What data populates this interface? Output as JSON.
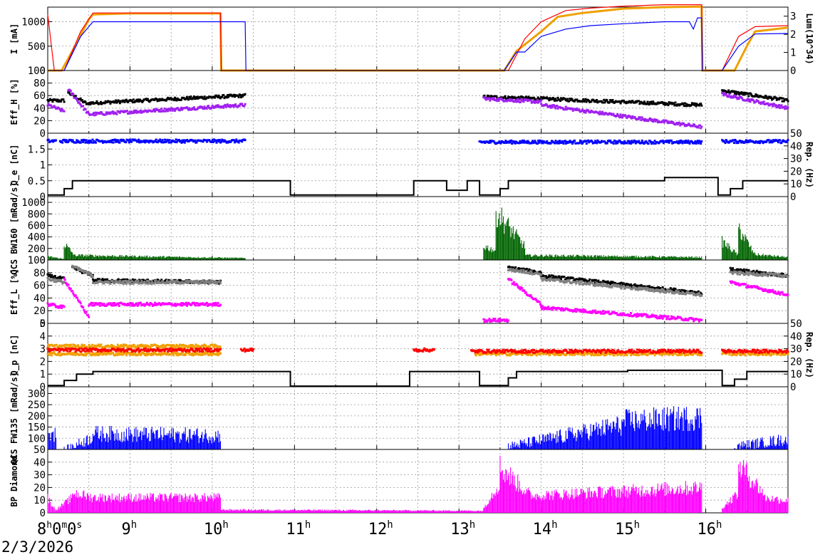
{
  "window": {
    "date_label": "2/3/2026"
  },
  "colors": {
    "black": "#000000",
    "red": "#ff0000",
    "orange": "#f0a000",
    "blue": "#0000ff",
    "purple": "#a020f0",
    "magenta": "#ff00ff",
    "gray": "#808080",
    "green": "#006400",
    "grid": "#888888"
  },
  "chart_data": [
    {
      "type": "line",
      "ylabel": "I [mA]",
      "ylabel_right": "Lum(10^34)",
      "ylim": [
        0,
        1300
      ],
      "yticks": [
        "0",
        "500",
        "1000"
      ],
      "ylim_right": [
        0,
        3.5
      ],
      "yticks_right": [
        "0",
        "1",
        "2",
        "3"
      ],
      "series": [
        {
          "color": "#f0a000",
          "x": [
            8.0,
            8.08,
            8.17,
            8.3,
            8.5,
            8.55,
            9.0,
            10.1,
            10.11,
            13.4,
            13.55,
            13.7,
            14.0,
            14.2,
            14.5,
            15.0,
            15.5,
            15.95,
            15.96,
            16.15,
            16.35,
            16.5,
            16.6,
            17.0
          ],
          "y": [
            0,
            0,
            0,
            400,
            1050,
            1150,
            1170,
            1170,
            0,
            0,
            0,
            400,
            800,
            1100,
            1180,
            1270,
            1300,
            1310,
            0,
            0,
            0,
            500,
            800,
            880
          ]
        },
        {
          "color": "#ff0000",
          "x": [
            8.0,
            8.08,
            8.2,
            8.4,
            8.55,
            9.0,
            10.1,
            10.11,
            13.4,
            13.6,
            13.8,
            14.0,
            14.3,
            14.6,
            15.0,
            15.5,
            15.95,
            15.96,
            16.2,
            16.4,
            16.6,
            17.0
          ],
          "y": [
            1150,
            0,
            0,
            800,
            1180,
            1180,
            1180,
            0,
            0,
            0,
            650,
            1000,
            1230,
            1280,
            1320,
            1350,
            1350,
            0,
            0,
            700,
            900,
            920
          ]
        },
        {
          "color": "#0000ff",
          "x": [
            8.0,
            8.08,
            8.2,
            8.4,
            8.55,
            9.0,
            10.1,
            10.4,
            10.41,
            13.4,
            13.55,
            13.7,
            13.8,
            14.0,
            14.3,
            14.6,
            15.0,
            15.5,
            15.8,
            15.85,
            15.9,
            15.95,
            15.96,
            16.2,
            16.4,
            16.6,
            17.0
          ],
          "y": [
            0,
            0,
            0,
            700,
            1000,
            1000,
            1000,
            1000,
            0,
            0,
            0,
            380,
            380,
            700,
            850,
            920,
            960,
            1000,
            1000,
            850,
            1080,
            1080,
            0,
            0,
            500,
            750,
            760
          ]
        }
      ]
    },
    {
      "type": "scatter",
      "ylabel": "Eff_H [%]",
      "ylim": [
        0,
        100
      ],
      "yticks": [
        "0",
        "20",
        "40",
        "60",
        "80",
        "100"
      ],
      "series": [
        {
          "color": "#000000",
          "segments": [
            [
              8.0,
              8.2,
              52,
              52
            ],
            [
              8.25,
              8.5,
              65,
              45
            ],
            [
              8.5,
              10.4,
              48,
              60
            ],
            [
              13.3,
              14.0,
              58,
              55
            ],
            [
              14.0,
              15.95,
              55,
              45
            ],
            [
              16.2,
              17.0,
              68,
              52
            ]
          ]
        },
        {
          "color": "#a020f0",
          "segments": [
            [
              8.0,
              8.2,
              45,
              35
            ],
            [
              8.25,
              8.5,
              70,
              30
            ],
            [
              8.5,
              10.4,
              30,
              45
            ],
            [
              13.3,
              14.0,
              55,
              50
            ],
            [
              14.0,
              15.95,
              45,
              10
            ],
            [
              16.2,
              17.0,
              62,
              40
            ]
          ]
        }
      ]
    },
    {
      "type": "scatter",
      "ylabel": "Q_e [nC]",
      "ylabel_right": "Rep. (Hz)",
      "ylim": [
        0,
        2
      ],
      "yticks": [
        "0",
        "0.5",
        "1",
        "1.5"
      ],
      "ylim_right": [
        0,
        50
      ],
      "yticks_right": [
        "0",
        "10",
        "20",
        "30",
        "40",
        "50"
      ],
      "series": [
        {
          "color": "#0000ff",
          "segments": [
            [
              8.0,
              8.1,
              1.75,
              1.75
            ],
            [
              8.15,
              10.4,
              1.75,
              1.75
            ],
            [
              13.25,
              15.95,
              1.72,
              1.72
            ],
            [
              16.2,
              17.0,
              1.74,
              1.74
            ]
          ]
        },
        {
          "color": "#000000",
          "type": "step",
          "x": [
            8.0,
            8.2,
            8.3,
            10.95,
            12.45,
            12.85,
            13.1,
            13.25,
            13.5,
            13.6,
            15.5,
            16.15,
            16.3,
            16.45,
            17.0
          ],
          "y": [
            0.05,
            0.25,
            0.5,
            0.05,
            0.5,
            0.2,
            0.5,
            0.05,
            0.25,
            0.5,
            0.6,
            0.05,
            0.25,
            0.5,
            0.5
          ]
        }
      ]
    },
    {
      "type": "area",
      "ylabel": "QCS BW160 [mRad/s]",
      "ylim": [
        0,
        1100
      ],
      "yticks": [
        "0",
        "200",
        "400",
        "600",
        "800",
        "1000"
      ],
      "series": [
        {
          "color": "#006400",
          "segments": [
            [
              8.0,
              8.2,
              80,
              20
            ],
            [
              8.2,
              8.35,
              350,
              60
            ],
            [
              8.35,
              10.4,
              100,
              40
            ],
            [
              13.3,
              13.45,
              300,
              200
            ],
            [
              13.45,
              13.8,
              1040,
              300
            ],
            [
              13.8,
              15.95,
              100,
              60
            ],
            [
              16.2,
              16.4,
              400,
              100
            ],
            [
              16.4,
              16.6,
              700,
              100
            ],
            [
              16.6,
              17.0,
              120,
              60
            ]
          ]
        }
      ]
    },
    {
      "type": "scatter",
      "ylabel": "Eff_L [%]",
      "ylim": [
        0,
        100
      ],
      "yticks": [
        "0",
        "20",
        "40",
        "60",
        "80",
        "100"
      ],
      "series": [
        {
          "color": "#000000",
          "segments": [
            [
              8.0,
              8.2,
              75,
              70
            ],
            [
              8.3,
              8.55,
              88,
              75
            ],
            [
              8.55,
              10.1,
              68,
              65
            ],
            [
              13.6,
              14.0,
              88,
              80
            ],
            [
              14.0,
              15.95,
              75,
              48
            ],
            [
              16.3,
              17.0,
              85,
              75
            ]
          ]
        },
        {
          "color": "#808080",
          "segments": [
            [
              8.0,
              8.2,
              70,
              65
            ],
            [
              8.3,
              8.55,
              90,
              75
            ],
            [
              8.55,
              10.1,
              65,
              65
            ],
            [
              13.6,
              14.0,
              85,
              78
            ],
            [
              14.0,
              15.95,
              70,
              45
            ],
            [
              16.3,
              17.0,
              80,
              75
            ]
          ]
        },
        {
          "color": "#ff00ff",
          "segments": [
            [
              8.0,
              8.2,
              30,
              25
            ],
            [
              8.2,
              8.5,
              70,
              10
            ],
            [
              8.5,
              10.1,
              30,
              30
            ],
            [
              13.3,
              13.6,
              5,
              5
            ],
            [
              13.6,
              14.0,
              70,
              30
            ],
            [
              14.0,
              15.95,
              25,
              5
            ],
            [
              16.3,
              17.0,
              65,
              45
            ]
          ]
        }
      ]
    },
    {
      "type": "scatter",
      "ylabel": "Q_p [nC]",
      "ylabel_right": "Rep. (Hz)",
      "ylim": [
        0,
        5
      ],
      "yticks": [
        "0",
        "1",
        "2",
        "3",
        "4",
        "5"
      ],
      "ylim_right": [
        0,
        50
      ],
      "yticks_right": [
        "0",
        "10",
        "20",
        "30",
        "40",
        "50"
      ],
      "series": [
        {
          "color": "#f0a000",
          "segments": [
            [
              8.0,
              10.1,
              3.2,
              3.2
            ],
            [
              8.0,
              10.1,
              2.6,
              2.6
            ],
            [
              13.2,
              15.95,
              2.6,
              2.6
            ],
            [
              16.2,
              17.0,
              2.6,
              2.6
            ]
          ]
        },
        {
          "color": "#ff0000",
          "segments": [
            [
              8.0,
              10.1,
              2.9,
              2.9
            ],
            [
              10.35,
              10.5,
              2.9,
              2.9
            ],
            [
              12.45,
              12.7,
              2.9,
              2.9
            ],
            [
              13.15,
              15.95,
              2.8,
              2.8
            ],
            [
              16.2,
              17.0,
              2.8,
              2.8
            ]
          ]
        },
        {
          "color": "#000000",
          "type": "step",
          "x": [
            8.0,
            8.2,
            8.35,
            8.55,
            10.95,
            12.4,
            13.25,
            13.6,
            13.7,
            15.05,
            16.2,
            16.35,
            16.5,
            17.0
          ],
          "y": [
            0.1,
            0.5,
            1.0,
            1.2,
            0.05,
            1.2,
            0.1,
            0.7,
            1.2,
            1.3,
            0.1,
            0.6,
            1.2,
            1.2
          ]
        }
      ]
    },
    {
      "type": "area",
      "ylabel": "QCS FW135 [mRad/s]",
      "ylim": [
        50,
        330
      ],
      "yticks": [
        "50",
        "100",
        "150",
        "200",
        "250",
        "300"
      ],
      "series": [
        {
          "color": "#0000ff",
          "segments": [
            [
              8.0,
              8.1,
              160,
              150
            ],
            [
              8.2,
              8.55,
              60,
              130
            ],
            [
              8.55,
              10.1,
              150,
              140
            ],
            [
              13.6,
              15.0,
              80,
              200
            ],
            [
              15.0,
              15.95,
              220,
              240
            ],
            [
              16.35,
              17.0,
              80,
              120
            ]
          ]
        }
      ]
    },
    {
      "type": "area",
      "ylabel": "BP Diamond",
      "ylim": [
        0,
        50
      ],
      "yticks": [
        "0",
        "10",
        "20",
        "30",
        "40"
      ],
      "series": [
        {
          "color": "#ff00ff",
          "segments": [
            [
              8.0,
              8.1,
              15,
              2
            ],
            [
              8.1,
              8.3,
              3,
              15
            ],
            [
              8.3,
              8.55,
              20,
              15
            ],
            [
              8.55,
              10.1,
              15,
              15
            ],
            [
              10.1,
              13.3,
              3,
              2
            ],
            [
              13.3,
              13.5,
              5,
              30
            ],
            [
              13.5,
              13.9,
              45,
              15
            ],
            [
              13.9,
              15.95,
              17,
              25
            ],
            [
              16.2,
              16.4,
              5,
              20
            ],
            [
              16.4,
              16.7,
              48,
              20
            ],
            [
              16.7,
              17.0,
              15,
              12
            ]
          ]
        }
      ]
    }
  ],
  "x_axis": {
    "start_label": {
      "main": "8",
      "parts": [
        "h",
        "0",
        "m",
        "0",
        "s"
      ]
    },
    "tick_labels": [
      {
        "hour": "9",
        "unit": "h"
      },
      {
        "hour": "10",
        "unit": "h"
      },
      {
        "hour": "11",
        "unit": "h"
      },
      {
        "hour": "12",
        "unit": "h"
      },
      {
        "hour": "13",
        "unit": "h"
      },
      {
        "hour": "14",
        "unit": "h"
      },
      {
        "hour": "15",
        "unit": "h"
      },
      {
        "hour": "16",
        "unit": "h"
      }
    ],
    "xlim": [
      8.0,
      17.0
    ]
  }
}
